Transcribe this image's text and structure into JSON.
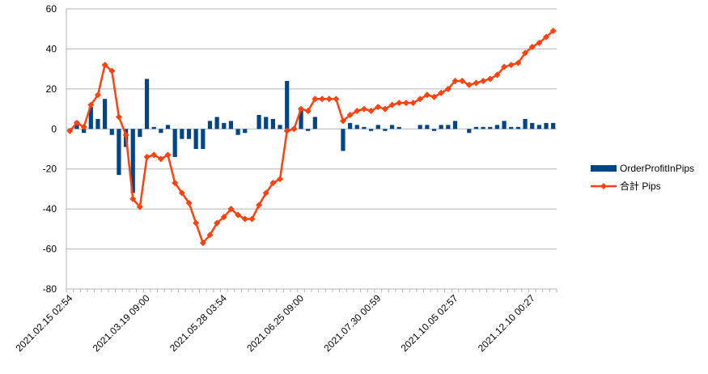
{
  "chart_data": {
    "type": "bar-line",
    "categories": [
      "2021.02.15 02:54",
      null,
      null,
      null,
      null,
      null,
      null,
      null,
      null,
      null,
      null,
      "2021.03.19 09:00",
      null,
      null,
      null,
      null,
      null,
      null,
      null,
      null,
      null,
      null,
      "2021.05.28 03:54",
      null,
      null,
      null,
      null,
      null,
      null,
      null,
      null,
      null,
      null,
      "2021.06.25 09:00",
      null,
      null,
      null,
      null,
      null,
      null,
      null,
      null,
      null,
      null,
      "2021.07.30 00:59",
      null,
      null,
      null,
      null,
      null,
      null,
      null,
      null,
      null,
      null,
      "2021.10.05 02:57",
      null,
      null,
      null,
      null,
      null,
      null,
      null,
      null,
      null,
      null,
      "2021.12.10 00:27",
      null,
      null,
      null
    ],
    "series": [
      {
        "name": "OrderProfitInPips",
        "kind": "bar",
        "color": "#004586",
        "values": [
          -1,
          4,
          -2,
          11,
          5,
          15,
          -3,
          -23,
          -9,
          -32,
          -4,
          25,
          1,
          -2,
          2,
          -14,
          -5,
          -5,
          -10,
          -10,
          4,
          6,
          3,
          4,
          -3,
          -2,
          0,
          7,
          6,
          5,
          2,
          24,
          1,
          10,
          -1,
          6,
          0,
          0,
          0,
          -11,
          3,
          2,
          1,
          -1,
          2,
          -1,
          2,
          1,
          0,
          0,
          2,
          2,
          -1,
          2,
          2,
          4,
          0,
          -2,
          1,
          1,
          1,
          2,
          4,
          1,
          1,
          5,
          3,
          2,
          3,
          3
        ]
      },
      {
        "name": "合計 Pips",
        "kind": "line",
        "color": "#ff420e",
        "values": [
          -1,
          3,
          1,
          12,
          17,
          32,
          29,
          6,
          -3,
          -35,
          -39,
          -14,
          -13,
          -15,
          -13,
          -27,
          -32,
          -37,
          -47,
          -57,
          -53,
          -47,
          -44,
          -40,
          -43,
          -45,
          -45,
          -38,
          -32,
          -27,
          -25,
          -1,
          0,
          10,
          9,
          15,
          15,
          15,
          15,
          4,
          7,
          9,
          10,
          9,
          11,
          10,
          12,
          13,
          13,
          13,
          15,
          17,
          16,
          18,
          20,
          24,
          24,
          22,
          23,
          24,
          25,
          27,
          31,
          32,
          33,
          38,
          41,
          43,
          46,
          49
        ]
      }
    ],
    "ylim": [
      -80,
      60
    ],
    "yticks": [
      -80,
      -60,
      -40,
      -20,
      0,
      20,
      40,
      60
    ],
    "grid": true,
    "legend": "right"
  }
}
